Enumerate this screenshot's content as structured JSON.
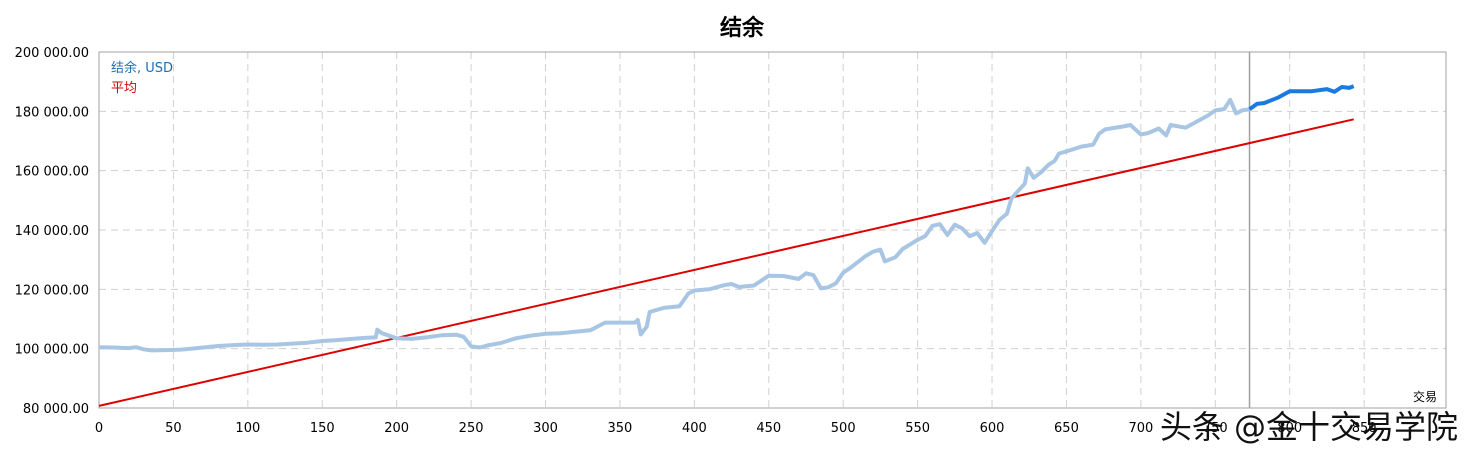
{
  "chart_data": {
    "type": "line",
    "title": "结余",
    "xlabel": "交易",
    "ylabel": "",
    "xlim": [
      0,
      905
    ],
    "ylim": [
      80000,
      200000
    ],
    "x_ticks": [
      0,
      50,
      100,
      150,
      200,
      250,
      300,
      350,
      400,
      450,
      500,
      550,
      600,
      650,
      700,
      750,
      800,
      850
    ],
    "y_ticks": [
      80000,
      100000,
      120000,
      140000,
      160000,
      180000,
      200000
    ],
    "y_tick_labels": [
      "80 000.00",
      "100 000.00",
      "120 000.00",
      "140 000.00",
      "160 000.00",
      "180 000.00",
      "200 000.00"
    ],
    "grid": true,
    "legend_position": "top-left",
    "divider_x": 773,
    "series": [
      {
        "name": "结余, USD",
        "color": "#a8c6e3",
        "highlight_color": "#1a7ae0",
        "highlight_from_x": 773,
        "points": [
          [
            0,
            100500
          ],
          [
            10,
            100400
          ],
          [
            20,
            100200
          ],
          [
            25,
            100500
          ],
          [
            30,
            99800
          ],
          [
            35,
            99400
          ],
          [
            45,
            99500
          ],
          [
            55,
            99700
          ],
          [
            60,
            99900
          ],
          [
            70,
            100400
          ],
          [
            80,
            100900
          ],
          [
            90,
            101200
          ],
          [
            100,
            101400
          ],
          [
            110,
            101300
          ],
          [
            120,
            101400
          ],
          [
            130,
            101700
          ],
          [
            140,
            102000
          ],
          [
            150,
            102600
          ],
          [
            160,
            102900
          ],
          [
            170,
            103300
          ],
          [
            180,
            103700
          ],
          [
            186,
            103800
          ],
          [
            187,
            106400
          ],
          [
            190,
            105200
          ],
          [
            200,
            103500
          ],
          [
            210,
            103300
          ],
          [
            220,
            103800
          ],
          [
            230,
            104500
          ],
          [
            240,
            104700
          ],
          [
            245,
            104000
          ],
          [
            250,
            100800
          ],
          [
            256,
            100400
          ],
          [
            262,
            101200
          ],
          [
            270,
            101900
          ],
          [
            280,
            103500
          ],
          [
            290,
            104400
          ],
          [
            300,
            105000
          ],
          [
            310,
            105200
          ],
          [
            320,
            105700
          ],
          [
            330,
            106200
          ],
          [
            340,
            108800
          ],
          [
            360,
            108800
          ],
          [
            362,
            109700
          ],
          [
            364,
            104800
          ],
          [
            368,
            107400
          ],
          [
            370,
            112400
          ],
          [
            380,
            113800
          ],
          [
            390,
            114300
          ],
          [
            396,
            118600
          ],
          [
            400,
            119600
          ],
          [
            410,
            120000
          ],
          [
            420,
            121400
          ],
          [
            425,
            121800
          ],
          [
            430,
            120800
          ],
          [
            440,
            121300
          ],
          [
            450,
            124600
          ],
          [
            460,
            124500
          ],
          [
            470,
            123500
          ],
          [
            475,
            125400
          ],
          [
            480,
            124800
          ],
          [
            485,
            120300
          ],
          [
            490,
            120700
          ],
          [
            495,
            122000
          ],
          [
            500,
            125600
          ],
          [
            505,
            127300
          ],
          [
            515,
            131200
          ],
          [
            520,
            132700
          ],
          [
            525,
            133400
          ],
          [
            528,
            129400
          ],
          [
            535,
            130800
          ],
          [
            540,
            133600
          ],
          [
            550,
            136700
          ],
          [
            555,
            137900
          ],
          [
            560,
            141400
          ],
          [
            565,
            142000
          ],
          [
            570,
            138300
          ],
          [
            575,
            141800
          ],
          [
            580,
            140500
          ],
          [
            585,
            137900
          ],
          [
            590,
            139000
          ],
          [
            595,
            135700
          ],
          [
            600,
            139600
          ],
          [
            605,
            143400
          ],
          [
            610,
            145500
          ],
          [
            613,
            150600
          ],
          [
            618,
            153400
          ],
          [
            622,
            155600
          ],
          [
            624,
            160800
          ],
          [
            628,
            157600
          ],
          [
            633,
            159500
          ],
          [
            638,
            162000
          ],
          [
            642,
            163300
          ],
          [
            645,
            165800
          ],
          [
            650,
            166500
          ],
          [
            660,
            168100
          ],
          [
            668,
            168800
          ],
          [
            672,
            172500
          ],
          [
            676,
            173900
          ],
          [
            688,
            174900
          ],
          [
            693,
            175400
          ],
          [
            700,
            172200
          ],
          [
            705,
            172700
          ],
          [
            712,
            174200
          ],
          [
            717,
            171900
          ],
          [
            720,
            175400
          ],
          [
            730,
            174500
          ],
          [
            740,
            177200
          ],
          [
            745,
            178600
          ],
          [
            750,
            180300
          ],
          [
            756,
            180800
          ],
          [
            760,
            183900
          ],
          [
            764,
            179300
          ],
          [
            768,
            180300
          ],
          [
            773,
            180700
          ],
          [
            778,
            182500
          ],
          [
            783,
            182800
          ],
          [
            792,
            184600
          ],
          [
            800,
            186800
          ],
          [
            815,
            186800
          ],
          [
            825,
            187500
          ],
          [
            830,
            186600
          ],
          [
            835,
            188200
          ],
          [
            840,
            187900
          ],
          [
            843,
            188500
          ]
        ]
      },
      {
        "name": "平均",
        "color": "#dd0000",
        "points": [
          [
            0,
            80700
          ],
          [
            843,
            177300
          ]
        ]
      }
    ]
  },
  "watermark": "头条 @金十交易学院"
}
